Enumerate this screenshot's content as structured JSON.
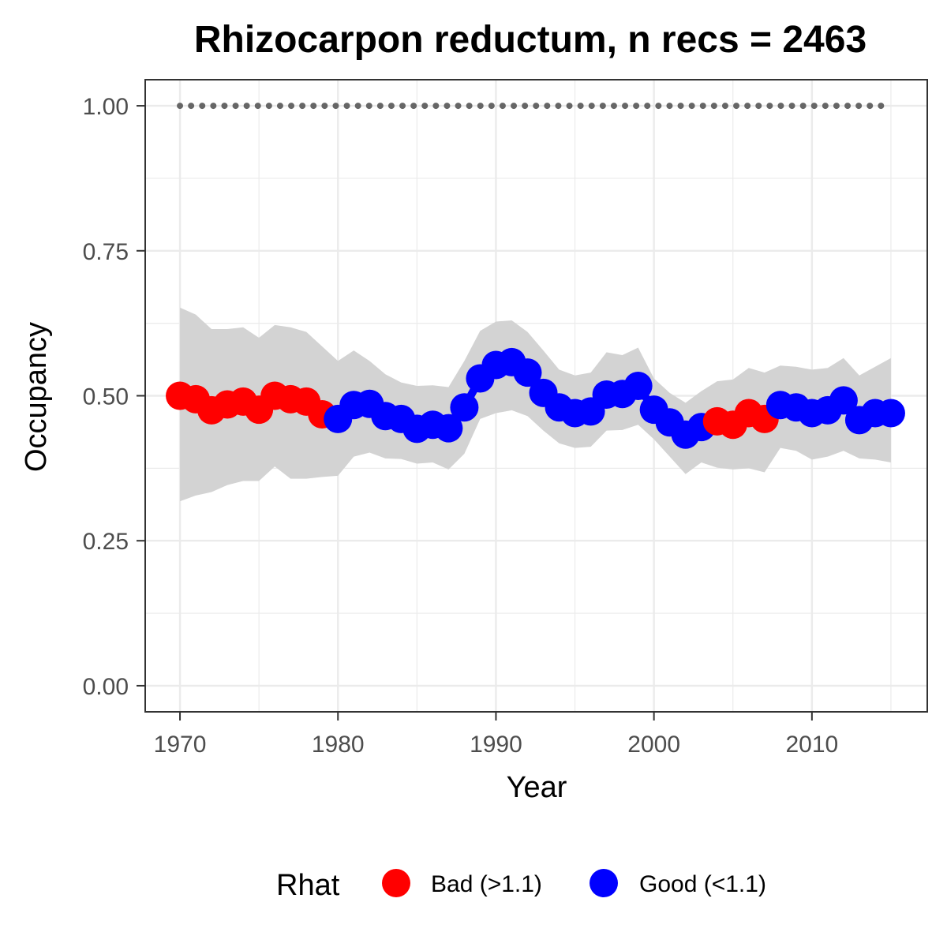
{
  "chart_data": {
    "type": "line",
    "title": "Rhizocarpon reductum, n recs = 2463",
    "xlabel": "Year",
    "ylabel": "Occupancy",
    "xlim": [
      1967.8,
      2017.3
    ],
    "ylim": [
      -0.045,
      1.045
    ],
    "x_ticks": [
      1970,
      1980,
      1990,
      2000,
      2010
    ],
    "x_tick_labels": [
      "1970",
      "1980",
      "1990",
      "2000",
      "2010"
    ],
    "y_ticks": [
      0,
      0.25,
      0.5,
      0.75,
      1.0
    ],
    "y_tick_labels": [
      "0.00",
      "0.25",
      "0.50",
      "0.75",
      "1.00"
    ],
    "grid": true,
    "years": [
      1970,
      1971,
      1972,
      1973,
      1974,
      1975,
      1976,
      1977,
      1978,
      1979,
      1980,
      1981,
      1982,
      1983,
      1984,
      1985,
      1986,
      1987,
      1988,
      1989,
      1990,
      1991,
      1992,
      1993,
      1994,
      1995,
      1996,
      1997,
      1998,
      1999,
      2000,
      2001,
      2002,
      2003,
      2004,
      2005,
      2006,
      2007,
      2008,
      2009,
      2010,
      2011,
      2012,
      2013,
      2014,
      2015
    ],
    "occupancy": [
      0.5,
      0.494,
      0.475,
      0.485,
      0.49,
      0.476,
      0.5,
      0.494,
      0.49,
      0.468,
      0.46,
      0.484,
      0.486,
      0.465,
      0.46,
      0.443,
      0.45,
      0.444,
      0.48,
      0.53,
      0.553,
      0.558,
      0.54,
      0.505,
      0.48,
      0.47,
      0.473,
      0.502,
      0.503,
      0.517,
      0.476,
      0.454,
      0.433,
      0.446,
      0.456,
      0.45,
      0.47,
      0.46,
      0.484,
      0.48,
      0.47,
      0.475,
      0.492,
      0.458,
      0.47,
      0.47
    ],
    "lower": [
      0.318,
      0.328,
      0.334,
      0.346,
      0.353,
      0.353,
      0.378,
      0.357,
      0.357,
      0.36,
      0.362,
      0.395,
      0.402,
      0.392,
      0.391,
      0.383,
      0.385,
      0.373,
      0.4,
      0.46,
      0.47,
      0.475,
      0.465,
      0.44,
      0.418,
      0.41,
      0.412,
      0.44,
      0.441,
      0.45,
      0.425,
      0.395,
      0.365,
      0.385,
      0.376,
      0.373,
      0.375,
      0.368,
      0.41,
      0.405,
      0.39,
      0.395,
      0.405,
      0.392,
      0.39,
      0.385
    ],
    "upper": [
      0.652,
      0.64,
      0.615,
      0.615,
      0.618,
      0.6,
      0.622,
      0.618,
      0.61,
      0.585,
      0.56,
      0.578,
      0.56,
      0.537,
      0.523,
      0.517,
      0.518,
      0.515,
      0.56,
      0.612,
      0.628,
      0.63,
      0.61,
      0.578,
      0.545,
      0.535,
      0.54,
      0.575,
      0.57,
      0.583,
      0.53,
      0.505,
      0.488,
      0.508,
      0.525,
      0.528,
      0.548,
      0.54,
      0.552,
      0.55,
      0.545,
      0.548,
      0.565,
      0.535,
      0.55,
      0.565
    ],
    "rhat": [
      "Bad (>1.1)",
      "Bad (>1.1)",
      "Bad (>1.1)",
      "Bad (>1.1)",
      "Bad (>1.1)",
      "Bad (>1.1)",
      "Bad (>1.1)",
      "Bad (>1.1)",
      "Bad (>1.1)",
      "Bad (>1.1)",
      "Good (<1.1)",
      "Good (<1.1)",
      "Good (<1.1)",
      "Good (<1.1)",
      "Good (<1.1)",
      "Good (<1.1)",
      "Good (<1.1)",
      "Good (<1.1)",
      "Good (<1.1)",
      "Good (<1.1)",
      "Good (<1.1)",
      "Good (<1.1)",
      "Good (<1.1)",
      "Good (<1.1)",
      "Good (<1.1)",
      "Good (<1.1)",
      "Good (<1.1)",
      "Good (<1.1)",
      "Good (<1.1)",
      "Good (<1.1)",
      "Good (<1.1)",
      "Good (<1.1)",
      "Good (<1.1)",
      "Good (<1.1)",
      "Bad (>1.1)",
      "Bad (>1.1)",
      "Bad (>1.1)",
      "Bad (>1.1)",
      "Good (<1.1)",
      "Good (<1.1)",
      "Good (<1.1)",
      "Good (<1.1)",
      "Good (<1.1)",
      "Good (<1.1)",
      "Good (<1.1)",
      "Good (<1.1)"
    ],
    "reference_line": {
      "y": 1.0,
      "style": "dotted",
      "color": "#666666"
    },
    "ribbon_color": "#d3d3d3",
    "legend": {
      "title": "Rhat",
      "position": "bottom",
      "entries": [
        {
          "label": "Bad (>1.1)",
          "color": "#ff0000"
        },
        {
          "label": "Good (<1.1)",
          "color": "#0000ff"
        }
      ]
    }
  }
}
